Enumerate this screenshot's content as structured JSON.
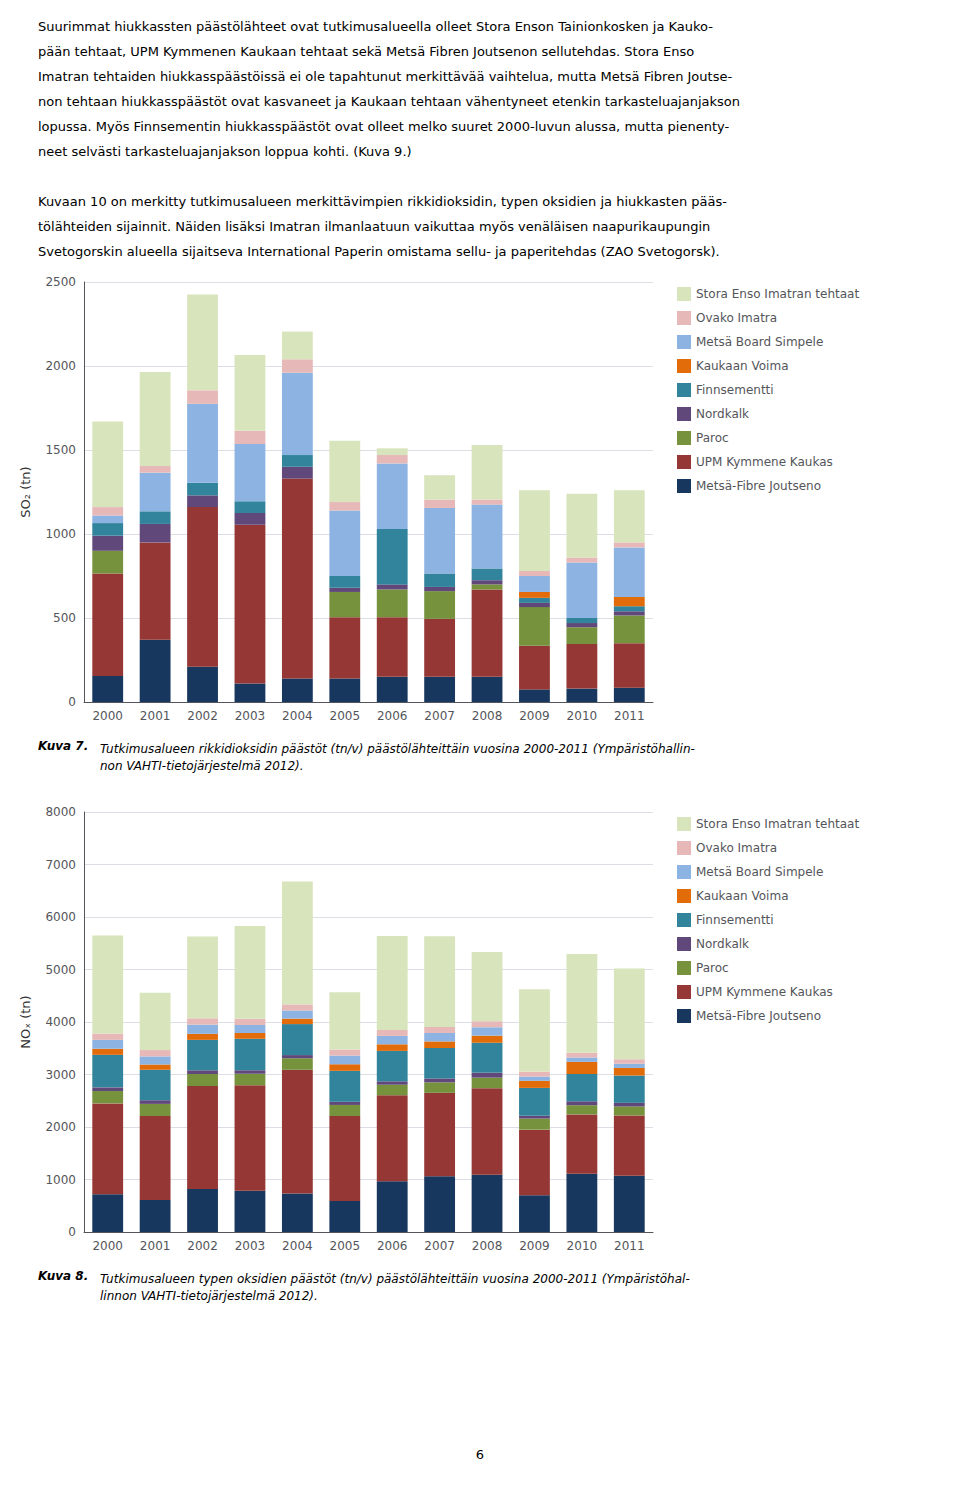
{
  "chart_data": [
    {
      "type": "bar",
      "stacked": true,
      "grid": true,
      "legend": "right",
      "ylabel": "SO₂ (tn)",
      "categories": [
        "2000",
        "2001",
        "2002",
        "2003",
        "2004",
        "2005",
        "2006",
        "2007",
        "2008",
        "2009",
        "2010",
        "2011"
      ],
      "ylim": [
        0,
        2500
      ],
      "yticks": [
        0,
        500,
        1000,
        1500,
        2000,
        2500
      ],
      "series": [
        {
          "name": "Stora Enso Imatran tehtaat",
          "color": "#d8e4bc",
          "values": [
            510,
            560,
            570,
            450,
            165,
            365,
            40,
            145,
            325,
            480,
            380,
            310
          ]
        },
        {
          "name": "Ovako Imatra",
          "color": "#e6b8b7",
          "values": [
            50,
            40,
            80,
            80,
            80,
            50,
            50,
            50,
            30,
            30,
            30,
            30
          ]
        },
        {
          "name": "Metsä Board Simpele",
          "color": "#8db3e2",
          "values": [
            45,
            230,
            470,
            340,
            490,
            390,
            390,
            390,
            380,
            95,
            330,
            295
          ]
        },
        {
          "name": "Kaukaan Voima",
          "color": "#e26b0a",
          "values": [
            0,
            0,
            0,
            0,
            0,
            0,
            0,
            0,
            0,
            35,
            0,
            55
          ]
        },
        {
          "name": "Finnsementti",
          "color": "#31849b",
          "values": [
            75,
            75,
            75,
            70,
            70,
            70,
            330,
            80,
            70,
            30,
            30,
            30
          ]
        },
        {
          "name": "Nordkalk",
          "color": "#60497a",
          "values": [
            90,
            110,
            70,
            70,
            70,
            25,
            30,
            25,
            25,
            25,
            25,
            25
          ]
        },
        {
          "name": "Paroc",
          "color": "#76923c",
          "values": [
            135,
            0,
            0,
            0,
            0,
            150,
            165,
            165,
            30,
            230,
            100,
            165
          ]
        },
        {
          "name": "UPM Kymmene Kaukas",
          "color": "#953735",
          "values": [
            610,
            580,
            950,
            945,
            1190,
            365,
            355,
            345,
            520,
            260,
            265,
            265
          ]
        },
        {
          "name": "Metsä-Fibre Joutseno",
          "color": "#17375e",
          "values": [
            155,
            370,
            210,
            110,
            140,
            140,
            150,
            150,
            150,
            75,
            80,
            85
          ]
        }
      ],
      "annotations": [
        "Kuva 7.",
        "Tutkimusalueen rikkidioksidin päästöt (tn/v) päästölähteittäin vuosina 2000-2011 (Ympäristöhallin-\nnon VAHTI-tietojärjestelmä 2012)."
      ]
    },
    {
      "type": "bar",
      "stacked": true,
      "grid": true,
      "legend": "right",
      "ylabel": "NOₓ (tn)",
      "categories": [
        "2000",
        "2001",
        "2002",
        "2003",
        "2004",
        "2005",
        "2006",
        "2007",
        "2008",
        "2009",
        "2010",
        "2011"
      ],
      "ylim": [
        0,
        8000
      ],
      "yticks": [
        0,
        1000,
        2000,
        3000,
        4000,
        5000,
        6000,
        7000,
        8000
      ],
      "series": [
        {
          "name": "Stora Enso Imatran tehtaat",
          "color": "#d8e4bc",
          "values": [
            1870,
            1090,
            1560,
            1770,
            2340,
            1090,
            1790,
            1730,
            1320,
            1570,
            1880,
            1730
          ]
        },
        {
          "name": "Ovako Imatra",
          "color": "#e6b8b7",
          "values": [
            120,
            120,
            120,
            115,
            115,
            115,
            115,
            115,
            115,
            95,
            90,
            85
          ]
        },
        {
          "name": "Metsä Board Simpele",
          "color": "#8db3e2",
          "values": [
            170,
            155,
            175,
            155,
            155,
            165,
            160,
            160,
            160,
            80,
            85,
            80
          ]
        },
        {
          "name": "Kaukaan Voima",
          "color": "#e26b0a",
          "values": [
            115,
            100,
            115,
            110,
            105,
            125,
            125,
            125,
            135,
            135,
            230,
            145
          ]
        },
        {
          "name": "Finnsementti",
          "color": "#31849b",
          "values": [
            620,
            580,
            580,
            600,
            590,
            590,
            580,
            580,
            570,
            530,
            520,
            520
          ]
        },
        {
          "name": "Nordkalk",
          "color": "#60497a",
          "values": [
            70,
            70,
            70,
            65,
            60,
            60,
            65,
            75,
            95,
            55,
            75,
            70
          ]
        },
        {
          "name": "Paroc",
          "color": "#76923c",
          "values": [
            235,
            230,
            230,
            220,
            220,
            210,
            200,
            200,
            200,
            210,
            175,
            170
          ]
        },
        {
          "name": "UPM Kymmene Kaukas",
          "color": "#953735",
          "values": [
            1730,
            1600,
            1960,
            2010,
            2355,
            1620,
            1640,
            1590,
            1650,
            1250,
            1130,
            1150
          ]
        },
        {
          "name": "Metsä-Fibre Joutseno",
          "color": "#17375e",
          "values": [
            720,
            610,
            820,
            785,
            735,
            590,
            965,
            1060,
            1090,
            700,
            1110,
            1070
          ]
        }
      ],
      "annotations": [
        "Kuva 8.",
        "Tutkimusalueen typen oksidien päästöt (tn/v) päästölähteittäin vuosina 2000-2011 (Ympäristöhal-\nlinnon VAHTI-tietojärjestelmä 2012)."
      ]
    }
  ],
  "header": [
    [
      "Suurimmat hiukkassten päästölähteet ovat tutkimusalueella olleet Stora Enson Tainionkosken ja Kauko-",
      "pään tehtaat, UPM Kymmenen Kaukaan tehtaat sekä Metsä Fibren Joutsenon sellutehdas. Stora Enso",
      "Imatran tehtaiden hiukkasspäästöissä ei ole tapahtunut merkittävää vaihtelua, mutta Metsä Fibren Joutse-",
      "non tehtaan hiukkasspäästöt ovat kasvaneet ja Kaukaan tehtaan vähentyneet etenkin tarkasteluajanjakson",
      "lopussa. Myös Finnsementin hiukkasspäästöt ovat olleet melko suuret 2000-luvun alussa, mutta pienenty-",
      "neet selvästi tarkasteluajanjakson loppua kohti. (Kuva 9.)"
    ],
    [
      "Kuvaan 10 on merkitty tutkimusalueen merkittävimpien rikkidioksidin, typen oksidien ja hiukkasten pääs-",
      "tölähteiden sijainnit. Näiden lisäksi Imatran ilmanlaatuun vaikuttaa myös venäläisen naapurikaupungin",
      "Svetogorskin alueella sijaitseva International Paperin omistama sellu- ja paperitehdas (ZAO Svetogorsk)."
    ]
  ],
  "page_number": "6"
}
